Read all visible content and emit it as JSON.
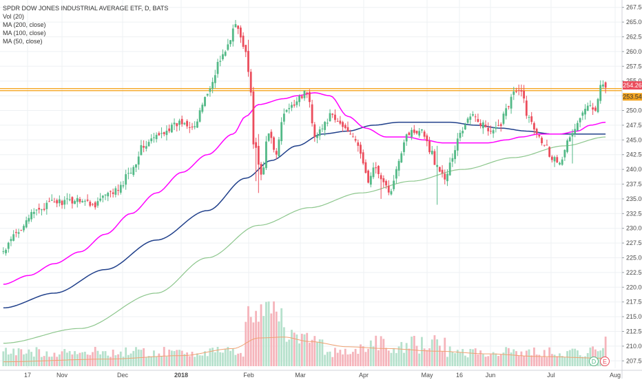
{
  "legend": {
    "title": "SPDR DOW JONES INDUSTRIAL AVERAGE ETF, D, BATS",
    "vol": "Vol (20)",
    "ma200": "MA (200, close)",
    "ma100": "MA (100, close)",
    "ma50": "MA (50, close)"
  },
  "price_tags": {
    "last": "254.26",
    "line": "253.54"
  },
  "event_badges": [
    "D",
    "E"
  ],
  "colors": {
    "up": "#53b987",
    "down": "#eb4d5c",
    "vol_up": "#b6e1cc",
    "vol_down": "#f5b4bb",
    "ma50": "#ff00ff",
    "ma100": "#1f3f8a",
    "ma200": "#8cc68c",
    "vol_ma": "#f0a070",
    "hline": "#f5a623",
    "grid": "#eef0f3",
    "axis_text": "#4a4a4a"
  },
  "chart_data": {
    "type": "candlestick",
    "title": "SPDR DOW JONES INDUSTRIAL AVERAGE ETF, D, BATS",
    "x_tick_labels": [
      "17",
      "Nov",
      "Dec",
      "2018",
      "Feb",
      "Mar",
      "Apr",
      "May",
      "16",
      "Jun",
      "Jul",
      "Aug"
    ],
    "y_tick_labels": [
      "207.50",
      "210.00",
      "212.50",
      "215.00",
      "217.50",
      "220.00",
      "222.50",
      "225.00",
      "227.50",
      "230.00",
      "232.50",
      "235.00",
      "237.50",
      "240.00",
      "242.50",
      "245.00",
      "247.50",
      "250.00",
      "252.50",
      "255.00",
      "257.50",
      "260.00",
      "262.50",
      "265.00",
      "267.50"
    ],
    "ylim": [
      206.25,
      268.75
    ],
    "horizontal_line": 253.54,
    "last_price": 254.26,
    "anchors_close": [
      [
        0,
        226.0
      ],
      [
        5,
        229.0
      ],
      [
        10,
        232.0
      ],
      [
        15,
        233.5
      ],
      [
        20,
        234.5
      ],
      [
        25,
        234.5
      ],
      [
        30,
        235.0
      ],
      [
        35,
        234.0
      ],
      [
        40,
        235.5
      ],
      [
        45,
        236.5
      ],
      [
        50,
        240.0
      ],
      [
        55,
        244.0
      ],
      [
        60,
        245.5
      ],
      [
        65,
        247.0
      ],
      [
        70,
        248.0
      ],
      [
        75,
        247.5
      ],
      [
        80,
        253.0
      ],
      [
        85,
        258.5
      ],
      [
        88,
        261.0
      ],
      [
        91,
        264.5
      ],
      [
        95,
        260.5
      ],
      [
        97,
        253.0
      ],
      [
        98,
        244.5
      ],
      [
        101,
        239.0
      ],
      [
        104,
        246.0
      ],
      [
        107,
        243.0
      ],
      [
        110,
        249.5
      ],
      [
        113,
        250.5
      ],
      [
        116,
        252.5
      ],
      [
        119,
        253.0
      ],
      [
        122,
        246.0
      ],
      [
        125,
        247.0
      ],
      [
        128,
        249.0
      ],
      [
        131,
        248.0
      ],
      [
        134,
        247.0
      ],
      [
        137,
        246.0
      ],
      [
        140,
        242.5
      ],
      [
        143,
        238.0
      ],
      [
        146,
        240.5
      ],
      [
        149,
        237.5
      ],
      [
        152,
        236.0
      ],
      [
        155,
        242.0
      ],
      [
        158,
        246.0
      ],
      [
        161,
        246.5
      ],
      [
        164,
        247.0
      ],
      [
        167,
        243.5
      ],
      [
        170,
        240.5
      ],
      [
        173,
        238.5
      ],
      [
        176,
        242.0
      ],
      [
        179,
        246.0
      ],
      [
        182,
        248.5
      ],
      [
        185,
        249.0
      ],
      [
        188,
        247.5
      ],
      [
        191,
        246.0
      ],
      [
        194,
        247.0
      ],
      [
        197,
        250.5
      ],
      [
        200,
        253.0
      ],
      [
        203,
        253.0
      ],
      [
        206,
        248.5
      ],
      [
        209,
        246.5
      ],
      [
        212,
        244.5
      ],
      [
        215,
        242.0
      ],
      [
        218,
        241.5
      ],
      [
        221,
        244.5
      ],
      [
        224,
        247.0
      ],
      [
        227,
        249.5
      ],
      [
        230,
        251.0
      ],
      [
        232,
        250.5
      ],
      [
        234,
        254.5
      ],
      [
        236,
        254.26
      ]
    ],
    "ma50_anchors": [
      [
        0,
        220.5
      ],
      [
        10,
        222.0
      ],
      [
        20,
        224.0
      ],
      [
        30,
        226.0
      ],
      [
        40,
        229.0
      ],
      [
        50,
        232.5
      ],
      [
        60,
        236.0
      ],
      [
        70,
        239.5
      ],
      [
        80,
        242.5
      ],
      [
        90,
        246.0
      ],
      [
        95,
        249.0
      ],
      [
        100,
        251.0
      ],
      [
        110,
        252.0
      ],
      [
        115,
        252.5
      ],
      [
        122,
        253.0
      ],
      [
        128,
        252.5
      ],
      [
        135,
        249.0
      ],
      [
        142,
        247.0
      ],
      [
        150,
        245.5
      ],
      [
        158,
        245.5
      ],
      [
        165,
        245.0
      ],
      [
        172,
        244.5
      ],
      [
        180,
        244.5
      ],
      [
        190,
        244.5
      ],
      [
        197,
        245.0
      ],
      [
        203,
        245.5
      ],
      [
        210,
        246.0
      ],
      [
        218,
        246.0
      ],
      [
        225,
        246.5
      ],
      [
        230,
        247.5
      ],
      [
        236,
        248.0
      ]
    ],
    "ma100_anchors": [
      [
        0,
        216.5
      ],
      [
        20,
        219.0
      ],
      [
        40,
        223.0
      ],
      [
        60,
        228.0
      ],
      [
        80,
        233.0
      ],
      [
        95,
        238.5
      ],
      [
        105,
        241.5
      ],
      [
        115,
        244.0
      ],
      [
        125,
        246.0
      ],
      [
        135,
        246.5
      ],
      [
        145,
        247.5
      ],
      [
        155,
        248.0
      ],
      [
        165,
        248.0
      ],
      [
        175,
        248.0
      ],
      [
        185,
        247.5
      ],
      [
        195,
        247.0
      ],
      [
        205,
        246.5
      ],
      [
        215,
        246.0
      ],
      [
        225,
        246.0
      ],
      [
        236,
        246.0
      ]
    ],
    "ma200_anchors": [
      [
        0,
        210.5
      ],
      [
        30,
        213.0
      ],
      [
        60,
        219.0
      ],
      [
        80,
        225.0
      ],
      [
        100,
        230.5
      ],
      [
        120,
        233.5
      ],
      [
        140,
        236.0
      ],
      [
        160,
        238.0
      ],
      [
        180,
        240.0
      ],
      [
        200,
        242.0
      ],
      [
        220,
        244.0
      ],
      [
        236,
        245.5
      ]
    ],
    "volume_ma_anchors": [
      [
        0,
        0.05
      ],
      [
        40,
        0.08
      ],
      [
        70,
        0.12
      ],
      [
        90,
        0.2
      ],
      [
        100,
        0.32
      ],
      [
        110,
        0.33
      ],
      [
        120,
        0.28
      ],
      [
        135,
        0.22
      ],
      [
        150,
        0.2
      ],
      [
        170,
        0.17
      ],
      [
        190,
        0.14
      ],
      [
        210,
        0.11
      ],
      [
        236,
        0.09
      ]
    ]
  }
}
